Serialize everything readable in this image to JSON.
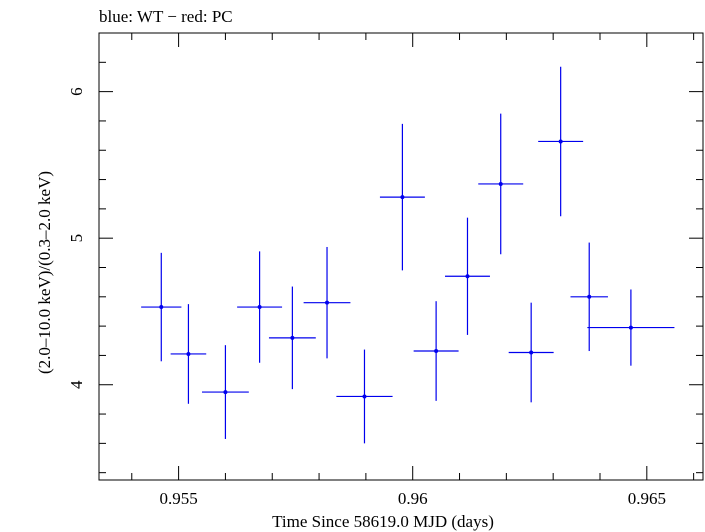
{
  "chart_data": {
    "type": "scatter",
    "title": "blue: WT − red: PC",
    "xlabel": "Time Since 58619.0 MJD (days)",
    "ylabel": "(2.0–10.0 keV)/(0.3–2.0 keV)",
    "xlim": [
      0.9533,
      0.9662
    ],
    "ylim": [
      3.35,
      6.4
    ],
    "xticks_labeled": [
      "0.955",
      "0.96",
      "0.965"
    ],
    "xtick_values": [
      0.955,
      0.96,
      0.965
    ],
    "yticks_labeled": [
      "4",
      "5",
      "6"
    ],
    "ytick_values": [
      4,
      5,
      6
    ],
    "grid": false,
    "series": [
      {
        "color": "#0000ee",
        "points": [
          {
            "x": 0.95463,
            "xerr": 0.00043,
            "y": 4.53,
            "yerr_low": 0.37,
            "yerr_high": 0.37
          },
          {
            "x": 0.95521,
            "xerr": 0.00038,
            "y": 4.21,
            "yerr_low": 0.34,
            "yerr_high": 0.34
          },
          {
            "x": 0.956,
            "xerr": 0.0005,
            "y": 3.95,
            "yerr_low": 0.32,
            "yerr_high": 0.32
          },
          {
            "x": 0.95673,
            "xerr": 0.00048,
            "y": 4.53,
            "yerr_low": 0.38,
            "yerr_high": 0.38
          },
          {
            "x": 0.95743,
            "xerr": 0.0005,
            "y": 4.32,
            "yerr_low": 0.35,
            "yerr_high": 0.35
          },
          {
            "x": 0.95817,
            "xerr": 0.0005,
            "y": 4.56,
            "yerr_low": 0.38,
            "yerr_high": 0.38
          },
          {
            "x": 0.95897,
            "xerr": 0.0006,
            "y": 3.92,
            "yerr_low": 0.32,
            "yerr_high": 0.32
          },
          {
            "x": 0.95978,
            "xerr": 0.00048,
            "y": 5.28,
            "yerr_low": 0.5,
            "yerr_high": 0.5
          },
          {
            "x": 0.9605,
            "xerr": 0.00048,
            "y": 4.23,
            "yerr_low": 0.34,
            "yerr_high": 0.34
          },
          {
            "x": 0.96117,
            "xerr": 0.00048,
            "y": 4.74,
            "yerr_low": 0.4,
            "yerr_high": 0.4
          },
          {
            "x": 0.96188,
            "xerr": 0.00048,
            "y": 5.37,
            "yerr_low": 0.48,
            "yerr_high": 0.48
          },
          {
            "x": 0.96253,
            "xerr": 0.00048,
            "y": 4.22,
            "yerr_low": 0.34,
            "yerr_high": 0.34
          },
          {
            "x": 0.96316,
            "xerr": 0.00048,
            "y": 5.66,
            "yerr_low": 0.51,
            "yerr_high": 0.51
          },
          {
            "x": 0.96377,
            "xerr": 0.0004,
            "y": 4.6,
            "yerr_low": 0.37,
            "yerr_high": 0.37
          },
          {
            "x": 0.96466,
            "xerr": 0.00093,
            "y": 4.39,
            "yerr_low": 0.26,
            "yerr_high": 0.26
          }
        ]
      }
    ]
  }
}
